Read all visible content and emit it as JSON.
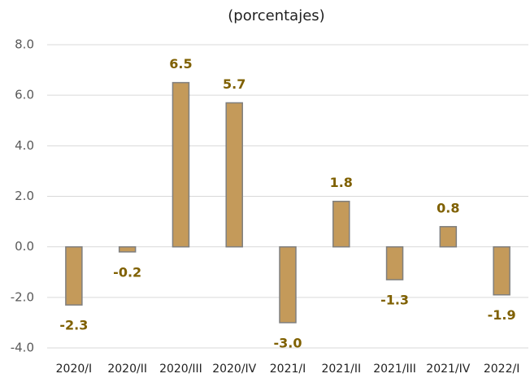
{
  "chart_data": {
    "type": "bar",
    "title": "(porcentajes)",
    "categories": [
      "2020/I",
      "2020/II",
      "2020/III",
      "2020/IV",
      "2021/I",
      "2021/II",
      "2021/III",
      "2021/IV",
      "2022/I"
    ],
    "values": [
      -2.3,
      -0.2,
      6.5,
      5.7,
      -3.0,
      1.8,
      -1.3,
      0.8,
      -1.9
    ],
    "value_labels": [
      "-2.3",
      "-0.2",
      "6.5",
      "5.7",
      "-3.0",
      "1.8",
      "-1.3",
      "0.8",
      "-1.9"
    ],
    "color": "#c49a5a",
    "ylim": [
      -4,
      8
    ],
    "yticks": [
      {
        "value": -4,
        "label": "-4.0"
      },
      {
        "value": -2,
        "label": "-2.0"
      },
      {
        "value": 0,
        "label": "0.0"
      },
      {
        "value": 2,
        "label": "2.0"
      },
      {
        "value": 4,
        "label": "4.0"
      },
      {
        "value": 6,
        "label": "6.0"
      },
      {
        "value": 8,
        "label": "8.0"
      }
    ],
    "grid": true
  }
}
